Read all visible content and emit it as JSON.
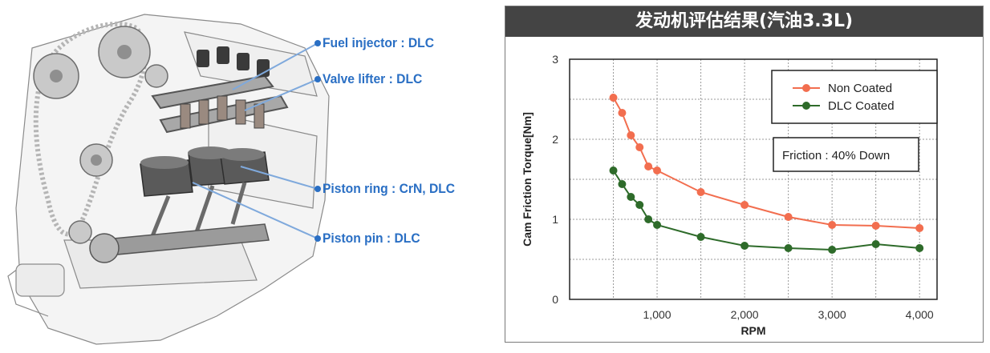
{
  "callouts": [
    {
      "label": "Fuel injector : DLC"
    },
    {
      "label": "Valve lifter : DLC"
    },
    {
      "label": "Piston ring : CrN,  DLC"
    },
    {
      "label": "Piston pin : DLC"
    }
  ],
  "colors": {
    "header_bg": "#444444",
    "callout_text": "#2a6fc4",
    "non_coated": "#f26e4f",
    "dlc_coated": "#2e6b2a"
  },
  "chart_data": {
    "type": "line",
    "title": "发动机评估结果(汽油3.3L)",
    "xlabel": "RPM",
    "ylabel": "Cam Friction Torque[Nm]",
    "xlim": [
      0,
      4200
    ],
    "ylim": [
      0,
      3
    ],
    "x_ticks": [
      1000,
      2000,
      3000,
      4000
    ],
    "x_tick_labels": [
      "1,000",
      "2,000",
      "3,000",
      "4,000"
    ],
    "y_ticks": [
      0,
      1,
      2,
      3
    ],
    "y_tick_labels": [
      "0",
      "1",
      "2",
      "3"
    ],
    "grid": "dashed",
    "legend_position": "top-right",
    "annotation": "Friction : 40% Down",
    "series": [
      {
        "name": "Non Coated",
        "color": "#f26e4f",
        "x": [
          500,
          600,
          700,
          800,
          900,
          1000,
          1500,
          2000,
          2500,
          3000,
          3500,
          4000
        ],
        "y": [
          2.52,
          2.33,
          2.05,
          1.9,
          1.66,
          1.61,
          1.34,
          1.18,
          1.03,
          0.93,
          0.92,
          0.89
        ]
      },
      {
        "name": "DLC Coated",
        "color": "#2e6b2a",
        "x": [
          500,
          600,
          700,
          800,
          900,
          1000,
          1500,
          2000,
          2500,
          3000,
          3500,
          4000
        ],
        "y": [
          1.61,
          1.44,
          1.28,
          1.18,
          1.0,
          0.93,
          0.78,
          0.67,
          0.64,
          0.62,
          0.69,
          0.64
        ]
      }
    ]
  }
}
